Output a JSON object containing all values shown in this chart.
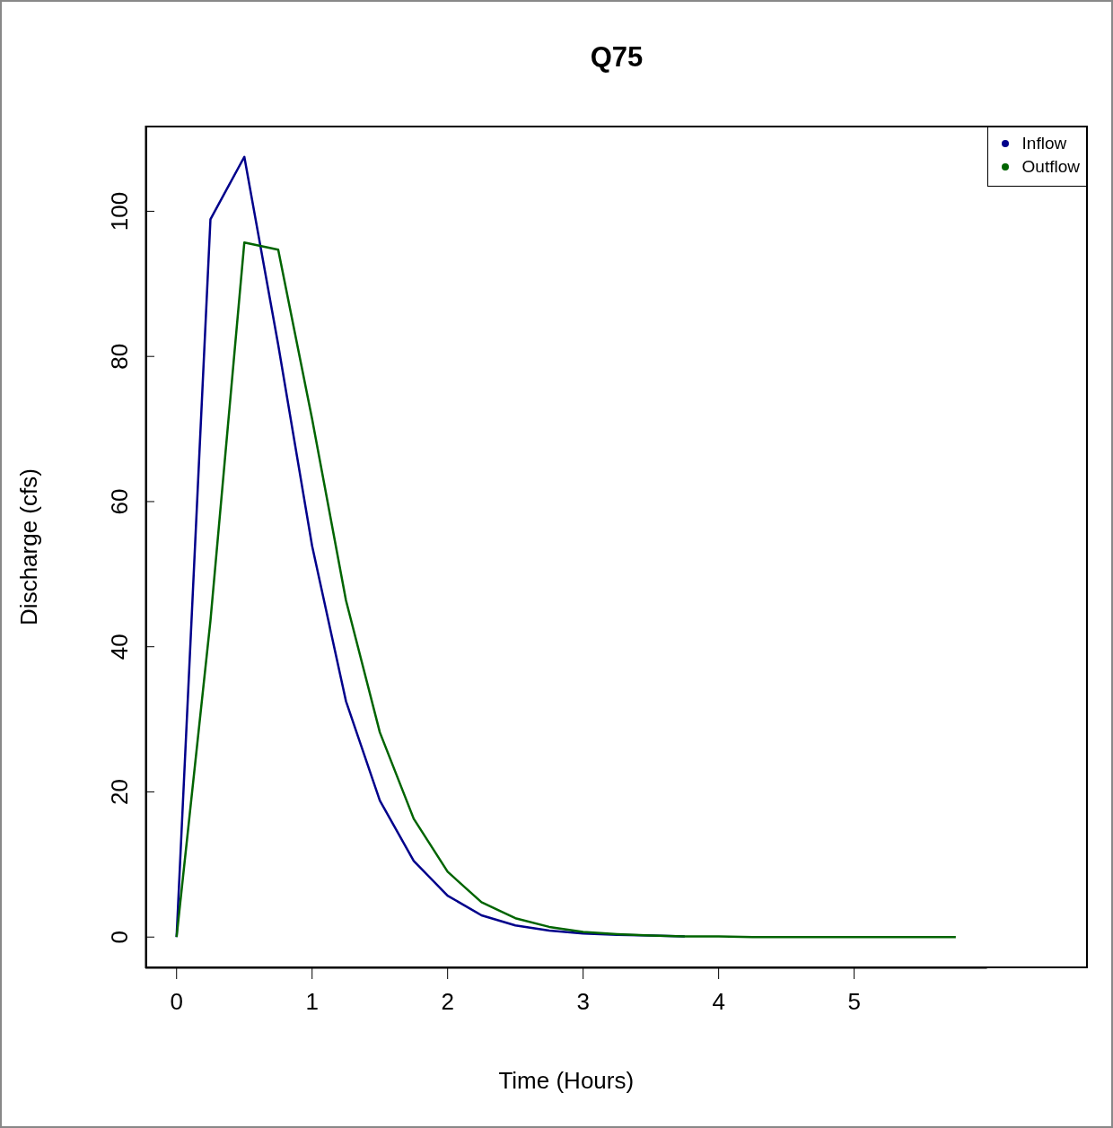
{
  "chart_data": {
    "type": "line",
    "title": "Q75",
    "xlabel": "Time (Hours)",
    "ylabel": "Discharge (cfs)",
    "x": [
      0,
      0.25,
      0.5,
      0.75,
      1,
      1.25,
      1.5,
      1.75,
      2,
      2.25,
      2.5,
      2.75,
      3,
      3.25,
      3.5,
      3.75,
      4,
      4.25,
      4.5,
      4.75,
      5,
      5.25,
      5.5,
      5.75
    ],
    "series": [
      {
        "name": "Inflow",
        "color": "#00008b",
        "values": [
          0,
          98.9,
          107.5,
          81.6,
          53.9,
          32.5,
          18.8,
          10.5,
          5.7,
          3.0,
          1.6,
          0.9,
          0.5,
          0.3,
          0.2,
          0.1,
          null,
          null,
          null,
          null,
          null,
          null,
          null,
          null
        ]
      },
      {
        "name": "Outflow",
        "color": "#006400",
        "values": [
          0,
          43.6,
          95.7,
          94.7,
          71.4,
          46.4,
          28.2,
          16.3,
          9.0,
          4.8,
          2.6,
          1.4,
          0.7,
          0.4,
          0.2,
          0.1,
          0.1,
          0,
          0,
          0,
          0,
          0,
          0,
          0
        ]
      }
    ],
    "xlim": [
      -0.23,
      5.98
    ],
    "ylim": [
      -4.3,
      111.8
    ],
    "xticks": [
      0,
      1,
      2,
      3,
      4,
      5
    ],
    "yticks": [
      0,
      20,
      40,
      60,
      80,
      100
    ],
    "grid": false,
    "legend": "top right",
    "marker": "none",
    "line_style": "solid"
  }
}
